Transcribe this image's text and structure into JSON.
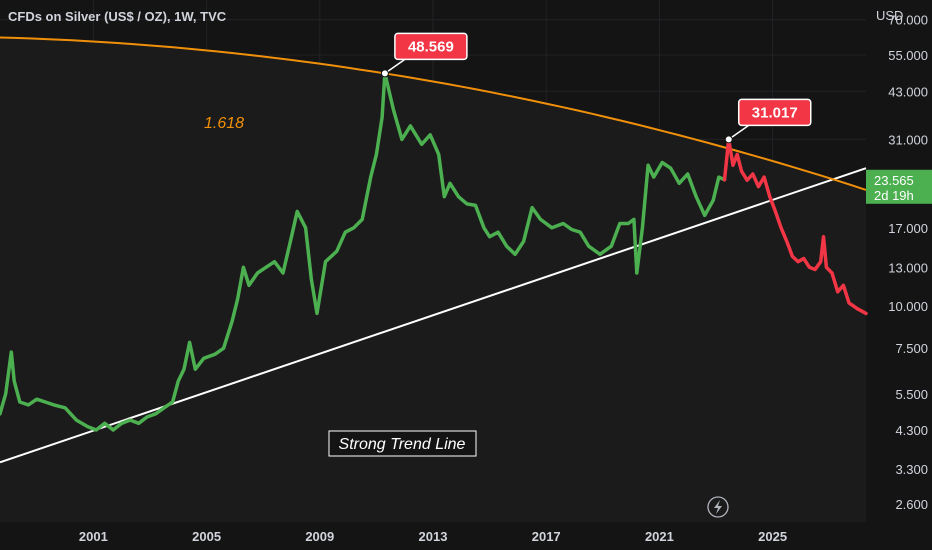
{
  "header": {
    "title": "CFDs on Silver (US$ / OZ), 1W, TVC",
    "currency": "USD"
  },
  "colors": {
    "background": "#141414",
    "rise": "#4caf50",
    "projection": "#f23645",
    "fib_curve": "#f0900a",
    "trend_line": "#ffffff",
    "axis_text": "#d1d4dc"
  },
  "price_tag": {
    "value": "23.565",
    "countdown": "2d 19h"
  },
  "chart_data": {
    "type": "line",
    "title": "CFDs on Silver (US$ / OZ), 1W, TVC",
    "y_scale": "log",
    "ylim": [
      2.3,
      80
    ],
    "xlim": [
      1997.7,
      2028.3
    ],
    "y_ticks": [
      "70.000",
      "55.000",
      "43.000",
      "31.000",
      "23.565",
      "17.000",
      "13.000",
      "10.000",
      "7.500",
      "5.500",
      "4.300",
      "3.300",
      "2.600"
    ],
    "y_tick_values": [
      70,
      55,
      43,
      31,
      23.565,
      17,
      13,
      10,
      7.5,
      5.5,
      4.3,
      3.3,
      2.6
    ],
    "x_ticks": [
      "2001",
      "2005",
      "2009",
      "2013",
      "2017",
      "2021",
      "2025"
    ],
    "x_tick_values": [
      2001,
      2005,
      2009,
      2013,
      2017,
      2021,
      2025
    ],
    "series": [
      {
        "color": "#4caf50",
        "x": [
          1997.7,
          1997.9,
          1998.1,
          1998.2,
          1998.4,
          1998.7,
          1999.0,
          1999.3,
          1999.6,
          2000.0,
          2000.4,
          2000.8,
          2001.1,
          2001.4,
          2001.7,
          2002.0,
          2002.3,
          2002.6,
          2002.9,
          2003.2,
          2003.5,
          2003.8,
          2004.0,
          2004.2,
          2004.4,
          2004.6,
          2004.9,
          2005.3,
          2005.6,
          2005.9,
          2006.1,
          2006.3,
          2006.5,
          2006.8,
          2007.1,
          2007.4,
          2007.7,
          2008.0,
          2008.2,
          2008.5,
          2008.7,
          2008.9,
          2009.2,
          2009.6,
          2009.9,
          2010.2,
          2010.5,
          2010.8,
          2011.0,
          2011.2,
          2011.3,
          2011.6,
          2011.9,
          2012.2,
          2012.6,
          2012.9,
          2013.2,
          2013.4,
          2013.6,
          2013.9,
          2014.2,
          2014.5,
          2014.8,
          2015.0,
          2015.3,
          2015.6,
          2015.9,
          2016.2,
          2016.5,
          2016.8,
          2017.2,
          2017.6,
          2017.9,
          2018.2,
          2018.5,
          2018.9,
          2019.3,
          2019.6,
          2019.9,
          2020.1,
          2020.2,
          2020.4,
          2020.6,
          2020.8,
          2021.1,
          2021.4,
          2021.7,
          2022.0,
          2022.3,
          2022.6,
          2022.9,
          2023.1,
          2023.3
        ],
        "y": [
          4.8,
          5.5,
          7.3,
          6.0,
          5.2,
          5.1,
          5.3,
          5.2,
          5.1,
          5.0,
          4.6,
          4.4,
          4.3,
          4.5,
          4.3,
          4.5,
          4.6,
          4.5,
          4.7,
          4.8,
          5.0,
          5.2,
          6.0,
          6.5,
          7.8,
          6.5,
          7.0,
          7.2,
          7.5,
          9.0,
          10.5,
          13.0,
          11.5,
          12.5,
          13.0,
          13.5,
          12.5,
          16.0,
          19.0,
          17.0,
          12.0,
          9.5,
          13.5,
          14.5,
          16.5,
          17.0,
          18.0,
          24.0,
          28.0,
          36.0,
          48.569,
          38.0,
          31.0,
          34.0,
          30.0,
          32.0,
          28.0,
          21.0,
          23.0,
          21.0,
          20.0,
          19.8,
          17.0,
          16.0,
          16.5,
          15.0,
          14.2,
          15.5,
          19.5,
          18.0,
          17.0,
          17.5,
          16.8,
          16.5,
          15.0,
          14.2,
          15.0,
          17.5,
          17.5,
          18.0,
          12.5,
          17.0,
          26.0,
          24.0,
          26.5,
          25.5,
          23.0,
          24.5,
          21.0,
          18.5,
          20.5,
          24.0,
          23.565
        ]
      },
      {
        "color": "#f23645",
        "x": [
          2023.3,
          2023.45,
          2023.6,
          2023.75,
          2023.9,
          2024.1,
          2024.3,
          2024.5,
          2024.7,
          2024.9,
          2025.1,
          2025.3,
          2025.5,
          2025.7,
          2025.9,
          2026.1,
          2026.3,
          2026.5,
          2026.7,
          2026.8,
          2026.9,
          2027.1,
          2027.3,
          2027.5,
          2027.7,
          2028.0,
          2028.3
        ],
        "y": [
          23.565,
          31.017,
          26.0,
          28.0,
          25.0,
          23.5,
          24.5,
          22.5,
          24.0,
          21.0,
          19.0,
          17.0,
          15.5,
          14.0,
          13.5,
          13.8,
          13.0,
          12.8,
          13.5,
          16.0,
          13.0,
          12.5,
          11.0,
          11.5,
          10.2,
          9.8,
          9.5
        ]
      }
    ],
    "fib_curve": {
      "label": "1.618"
    },
    "trend_line": {
      "label": "Strong Trend Line"
    },
    "callouts": [
      {
        "label": "48.569",
        "x": 2011.3,
        "y": 48.569
      },
      {
        "label": "31.017",
        "x": 2023.45,
        "y": 31.017
      }
    ]
  }
}
